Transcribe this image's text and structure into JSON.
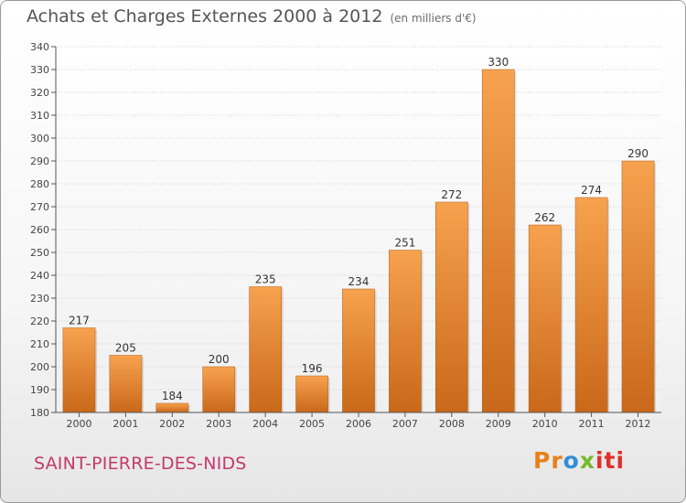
{
  "header": {
    "title": "Achats et Charges Externes 2000 à 2012",
    "unit": "(en milliers d'€)"
  },
  "footer": {
    "commune": "SAINT-PIERRE-DES-NIDS",
    "brand": [
      "Pr",
      "o",
      "x",
      "iti"
    ]
  },
  "chart_data": {
    "type": "bar",
    "title": "Achats et Charges Externes 2000 à 2012",
    "subtitle": "(en milliers d'€)",
    "xlabel": "",
    "ylabel": "",
    "categories": [
      "2000",
      "2001",
      "2002",
      "2003",
      "2004",
      "2005",
      "2006",
      "2007",
      "2008",
      "2009",
      "2010",
      "2011",
      "2012"
    ],
    "values": [
      217,
      205,
      184,
      200,
      235,
      196,
      234,
      251,
      272,
      330,
      262,
      274,
      290
    ],
    "ylim": [
      180,
      340
    ],
    "yticks": [
      180,
      190,
      200,
      210,
      220,
      230,
      240,
      250,
      260,
      270,
      280,
      290,
      300,
      310,
      320,
      330,
      340
    ],
    "grid": true,
    "bar_color": "#e8832c"
  }
}
